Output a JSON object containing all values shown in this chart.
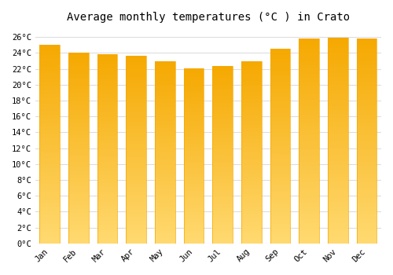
{
  "title": "Average monthly temperatures (°C ) in Crato",
  "months": [
    "Jan",
    "Feb",
    "Mar",
    "Apr",
    "May",
    "Jun",
    "Jul",
    "Aug",
    "Sep",
    "Oct",
    "Nov",
    "Dec"
  ],
  "values": [
    25.0,
    24.0,
    23.8,
    23.6,
    23.0,
    22.1,
    22.4,
    23.0,
    24.5,
    25.8,
    25.9,
    25.8
  ],
  "bar_color_top": "#F5A800",
  "bar_color_bottom": "#FFD970",
  "background_color": "#FFFFFF",
  "grid_color": "#DDDDDD",
  "ytick_labels": [
    "0°C",
    "2°C",
    "4°C",
    "6°C",
    "8°C",
    "10°C",
    "12°C",
    "14°C",
    "16°C",
    "18°C",
    "20°C",
    "22°C",
    "24°C",
    "26°C"
  ],
  "ytick_values": [
    0,
    2,
    4,
    6,
    8,
    10,
    12,
    14,
    16,
    18,
    20,
    22,
    24,
    26
  ],
  "ylim": [
    0,
    27
  ],
  "title_fontsize": 10,
  "tick_fontsize": 7.5,
  "font_family": "monospace",
  "bar_width": 0.7
}
